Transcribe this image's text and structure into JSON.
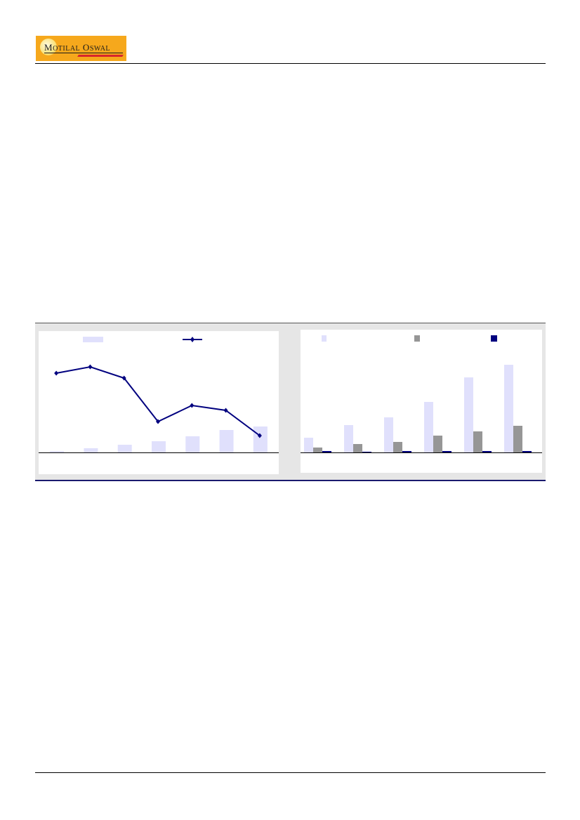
{
  "header": {
    "logo_text": "Motilal Oswal"
  },
  "colors": {
    "light_bar": "#e0e0fc",
    "gray_bar": "#969696",
    "navy": "#00007f",
    "logo_bg": "#f6a81c"
  },
  "chart_data": [
    {
      "type": "bar+line",
      "categories": [
        "",
        "",
        "",
        "",
        "",
        "",
        ""
      ],
      "series": [
        {
          "kind": "bar",
          "color": "#e0e0fc",
          "values": [
            2,
            6,
            11,
            16,
            23,
            32,
            37
          ]
        },
        {
          "kind": "line",
          "color": "#00007f",
          "marker": "diamond",
          "values": [
            113,
            122,
            106,
            44,
            67,
            60,
            24
          ]
        }
      ],
      "legend": "top",
      "grid": false
    },
    {
      "type": "bar",
      "categories": [
        "",
        "",
        "",
        "",
        "",
        ""
      ],
      "series": [
        {
          "color": "#e0e0fc",
          "values": [
            21,
            39,
            50,
            72,
            107,
            125
          ]
        },
        {
          "color": "#969696",
          "values": [
            7,
            12,
            15,
            24,
            30,
            38
          ]
        },
        {
          "color": "#00007f",
          "values": [
            2,
            1,
            2,
            2,
            2,
            2
          ]
        }
      ],
      "legend": "top",
      "grid": false
    }
  ]
}
